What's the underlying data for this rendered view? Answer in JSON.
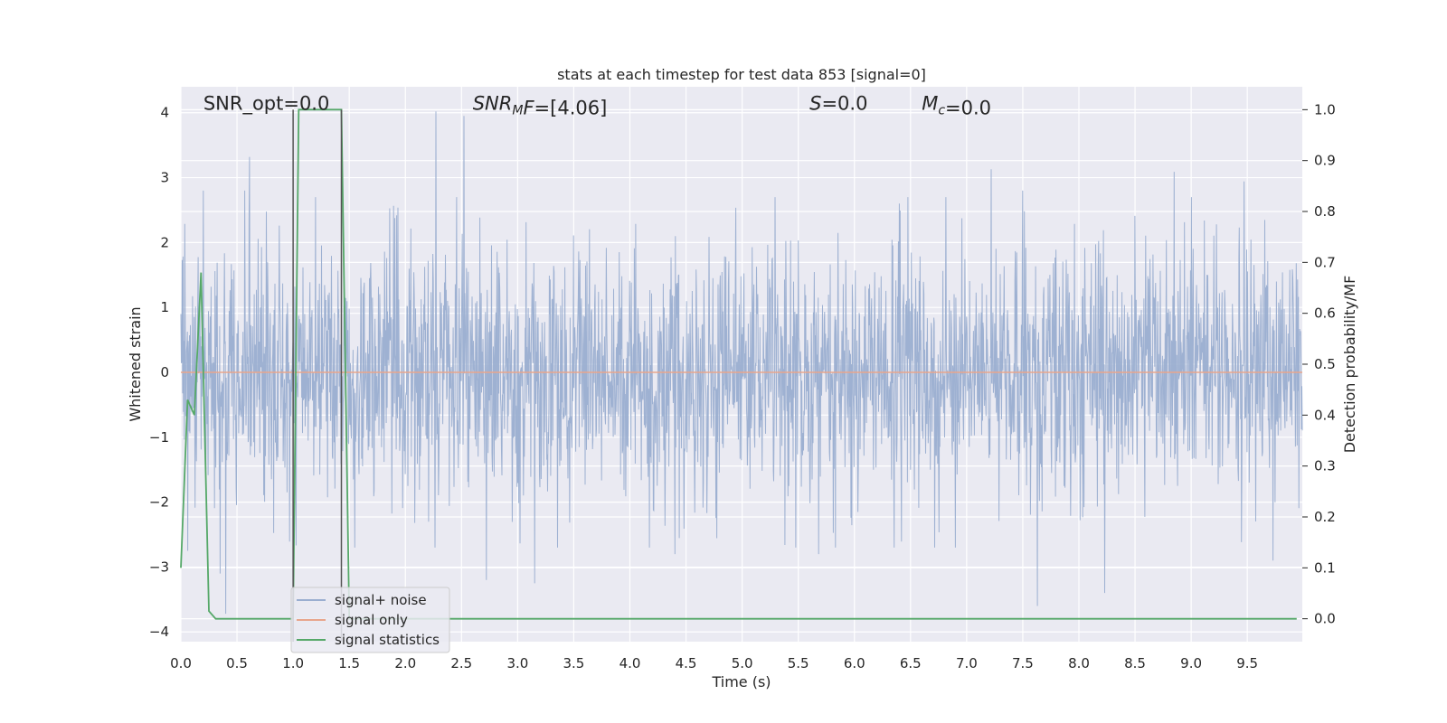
{
  "chart_data": {
    "type": "line",
    "title": "stats at each timestep for test data 853 [signal=0]",
    "xlabel": "Time (s)",
    "ylabel_left": "Whitened strain",
    "ylabel_right": "Detection probability/MF",
    "xlim": [
      0,
      9.99
    ],
    "ylim_left": [
      -4.15,
      4.4
    ],
    "ylim_right": [
      -0.045,
      1.045
    ],
    "x_ticks": [
      0,
      0.5,
      1,
      1.5,
      2,
      2.5,
      3,
      3.5,
      4,
      4.5,
      5,
      5.5,
      6,
      6.5,
      7,
      7.5,
      8,
      8.5,
      9,
      9.5
    ],
    "x_tick_labels": [
      "0.0",
      "0.5",
      "1.0",
      "1.5",
      "2.0",
      "2.5",
      "3.0",
      "3.5",
      "4.0",
      "4.5",
      "5.0",
      "5.5",
      "6.0",
      "6.5",
      "7.0",
      "7.5",
      "8.0",
      "8.5",
      "9.0",
      "9.5"
    ],
    "y_left_ticks": [
      -4,
      -3,
      -2,
      -1,
      0,
      1,
      2,
      3,
      4
    ],
    "y_left_tick_labels": [
      "−4",
      "−3",
      "−2",
      "−1",
      "0",
      "1",
      "2",
      "3",
      "4"
    ],
    "y_right_ticks": [
      0,
      0.1,
      0.2,
      0.3,
      0.4,
      0.5,
      0.6,
      0.7,
      0.8,
      0.9,
      1.0
    ],
    "y_right_tick_labels": [
      "0.0",
      "0.1",
      "0.2",
      "0.3",
      "0.4",
      "0.5",
      "0.6",
      "0.7",
      "0.8",
      "0.9",
      "1.0"
    ],
    "grid": true,
    "annotations": [
      {
        "text_parts": [
          {
            "t": "SNR_opt=0.0",
            "italic": false
          }
        ],
        "x": 0.2,
        "y_right": 1.0
      },
      {
        "text_parts": [
          {
            "t": "SNR",
            "italic": true
          },
          {
            "t": "M",
            "italic": true,
            "sub": true
          },
          {
            "t": "F",
            "italic": true
          },
          {
            "t": "=[4.06]",
            "italic": false
          }
        ],
        "x": 2.6,
        "y_right": 1.0
      },
      {
        "text_parts": [
          {
            "t": "S",
            "italic": true
          },
          {
            "t": "=0.0",
            "italic": false
          }
        ],
        "x": 5.6,
        "y_right": 1.0
      },
      {
        "text_parts": [
          {
            "t": "M",
            "italic": true
          },
          {
            "t": "c",
            "italic": true,
            "sub": true
          },
          {
            "t": "=0.0",
            "italic": false
          }
        ],
        "x": 6.6,
        "y_right": 1.0
      }
    ],
    "vertical_lines": [
      {
        "x": 1.0,
        "y_right": [
          -0.045,
          1.0
        ],
        "color": "#555555"
      },
      {
        "x": 1.43,
        "y_right": [
          -0.045,
          1.0
        ],
        "color": "#555555"
      }
    ],
    "series": [
      {
        "name": "signal+ noise",
        "axis": "left",
        "color": "#9aaed0",
        "kind": "noise",
        "x_range": [
          0,
          9.99
        ],
        "band_typical": [
          -1.3,
          1.3
        ],
        "notable_peaks": [
          {
            "x": 0.61,
            "y": 3.32
          },
          {
            "x": 2.27,
            "y": 4.02
          },
          {
            "x": 2.52,
            "y": 3.95
          },
          {
            "x": 7.22,
            "y": 3.13
          },
          {
            "x": 8.85,
            "y": 3.09
          },
          {
            "x": 9.47,
            "y": 2.94
          },
          {
            "x": 0.2,
            "y": 2.8
          },
          {
            "x": 0.57,
            "y": 2.8
          },
          {
            "x": 1.2,
            "y": 2.7
          },
          {
            "x": 4.4,
            "y": 2.5
          },
          {
            "x": 6.4,
            "y": 2.6
          },
          {
            "x": 7.5,
            "y": 2.8
          }
        ],
        "notable_troughs": [
          {
            "x": 0.4,
            "y": -3.72
          },
          {
            "x": 7.63,
            "y": -3.6
          },
          {
            "x": 8.23,
            "y": -3.4
          },
          {
            "x": 2.72,
            "y": -3.2
          },
          {
            "x": 3.15,
            "y": -3.25
          },
          {
            "x": 0.06,
            "y": -2.75
          },
          {
            "x": 5.68,
            "y": -2.8
          },
          {
            "x": 9.73,
            "y": -2.9
          },
          {
            "x": 0.35,
            "y": -3.1
          },
          {
            "x": 4.4,
            "y": -2.8
          },
          {
            "x": 1.55,
            "y": -2.7
          },
          {
            "x": 6.9,
            "y": -2.7
          }
        ]
      },
      {
        "name": "signal only",
        "axis": "left",
        "color": "#e8a58c",
        "x": [
          0,
          9.99
        ],
        "y": [
          0,
          0
        ]
      },
      {
        "name": "signal statistics",
        "axis": "right",
        "color": "#55a868",
        "x": [
          0,
          0.06,
          0.12,
          0.18,
          0.25,
          0.31,
          0.35,
          0.4,
          0.5,
          0.94,
          1.0,
          1.05,
          1.07,
          1.43,
          1.5,
          2.0,
          9.94
        ],
        "y": [
          0.1,
          0.43,
          0.4,
          0.68,
          0.015,
          0.0,
          0.0,
          0.0,
          0.0,
          0.0,
          0.0,
          1.0,
          1.0,
          1.0,
          0.0,
          0.0,
          0.0
        ]
      }
    ],
    "legend": {
      "placement": "lower-left",
      "entries": [
        "signal+ noise",
        "signal only",
        "signal statistics"
      ]
    }
  }
}
